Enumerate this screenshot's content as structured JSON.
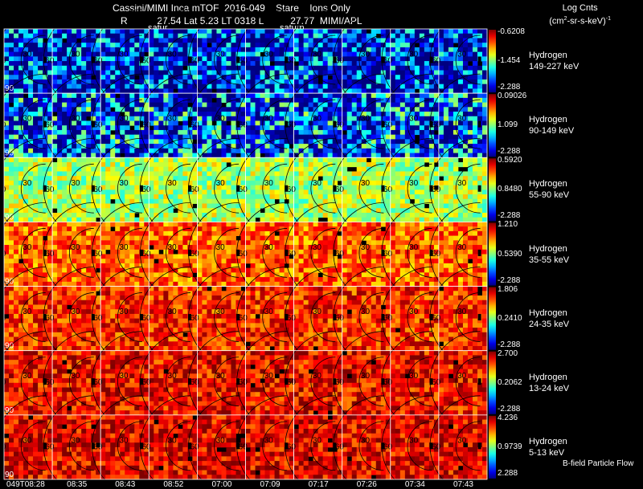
{
  "header": {
    "title": "Cassini/MIMI Inca mTOF  2016-049    Stare    Ions Only",
    "subtitle": "R           27.54 Lat 5.23 LT 0318 L          27.77  MIMI/APL",
    "saturn_labels": [
      "satur",
      "saturn"
    ],
    "colorbar_title": "Log Cnts",
    "colorbar_units": "(cm",
    "colorbar_units_tail": "-sr-s-keV)",
    "colorbar_units_sup": "2",
    "colorbar_units_sup2": "-1"
  },
  "chart_data": {
    "type": "heatmap",
    "title": "Cassini/MIMI Inca mTOF 2016-049 Stare Ions Only",
    "time_ticks": [
      "049T08:28",
      "08:35",
      "08:43",
      "08:52",
      "07:00",
      "07:09",
      "07:17",
      "07:26",
      "07:34",
      "07:43"
    ],
    "contour_labels": [
      "30",
      "60",
      "90"
    ],
    "footer_note": "B-field Particle Flow",
    "bands": [
      {
        "species": "Hydrogen",
        "energy": "149-227 keV",
        "cb_max": "-0.6208",
        "cb_mid": "-1.454",
        "cb_min": "-2.288",
        "level": 0.12
      },
      {
        "species": "Hydrogen",
        "energy": "90-149 keV",
        "cb_max": "0.09026",
        "cb_mid": "1.099",
        "cb_min": "-2.288",
        "level": 0.22
      },
      {
        "species": "Hydrogen",
        "energy": "55-90 keV",
        "cb_max": "0.5920",
        "cb_mid": "0.8480",
        "cb_min": "-2.288",
        "level": 0.55
      },
      {
        "species": "Hydrogen",
        "energy": "35-55 keV",
        "cb_max": "1.210",
        "cb_mid": "0.5390",
        "cb_min": "-2.288",
        "level": 0.78
      },
      {
        "species": "Hydrogen",
        "energy": "24-35 keV",
        "cb_max": "1.806",
        "cb_mid": "0.2410",
        "cb_min": "-2.288",
        "level": 0.84
      },
      {
        "species": "Hydrogen",
        "energy": "13-24 keV",
        "cb_max": "2.700",
        "cb_mid": "0.2062",
        "cb_min": "-2.288",
        "level": 0.88
      },
      {
        "species": "Hydrogen",
        "energy": "5-13 keV",
        "cb_max": "4.236",
        "cb_mid": "0.9739",
        "cb_min": "2.288",
        "level": 0.9
      }
    ]
  }
}
